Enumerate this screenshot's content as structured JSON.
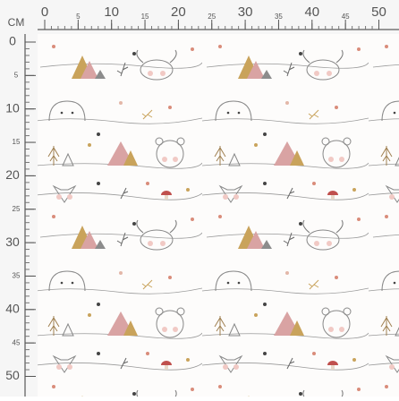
{
  "ruler": {
    "unit": "CM",
    "top_labels": [
      0,
      5,
      10,
      15,
      20,
      25,
      30,
      35,
      40,
      45,
      50
    ],
    "left_labels": [
      0,
      5,
      10,
      15,
      20,
      25,
      30,
      35,
      40,
      45,
      50
    ]
  }
}
